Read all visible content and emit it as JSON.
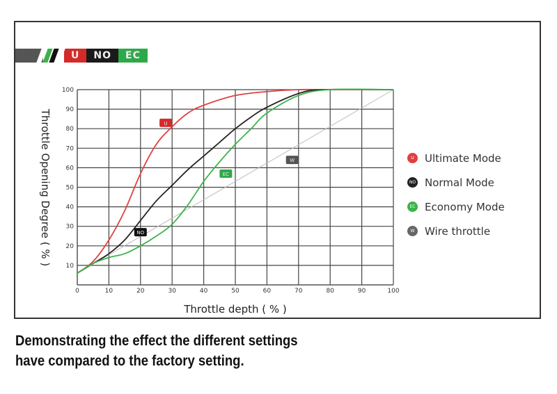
{
  "banner": {
    "labels": [
      "U",
      "NO",
      "EC"
    ],
    "colors": [
      "#d42a2a",
      "#1a1a1a",
      "#2fa84a"
    ]
  },
  "chart_data": {
    "type": "line",
    "xlabel": "Throttle depth ( % )",
    "ylabel": "Throttle Opening Degree ( % )",
    "xlim": [
      0,
      100
    ],
    "ylim": [
      0,
      100
    ],
    "xticks": [
      "0",
      "10",
      "20",
      "30",
      "40",
      "50",
      "60",
      "70",
      "80",
      "90",
      "100"
    ],
    "yticks": [
      "10",
      "20",
      "30",
      "40",
      "50",
      "60",
      "70",
      "80",
      "90",
      "100"
    ],
    "grid": true,
    "legend_position": "right",
    "series": [
      {
        "name": "Ultimate Mode",
        "badge": "U",
        "color": "#e04040",
        "x": [
          0,
          5,
          10,
          15,
          20,
          25,
          30,
          35,
          40,
          50,
          60,
          70,
          80,
          100
        ],
        "y": [
          6,
          12,
          23,
          38,
          57,
          72,
          81,
          88,
          92,
          97,
          99,
          100,
          100,
          100
        ],
        "badge_at": [
          28,
          83
        ]
      },
      {
        "name": "Normal Mode",
        "badge": "NO",
        "color": "#222222",
        "x": [
          0,
          5,
          10,
          15,
          20,
          25,
          30,
          35,
          40,
          45,
          50,
          55,
          60,
          70,
          78,
          100
        ],
        "y": [
          6,
          11,
          16,
          23,
          33,
          43,
          51,
          59,
          66,
          73,
          80,
          86,
          91,
          98,
          100,
          100
        ],
        "badge_at": [
          20,
          27
        ]
      },
      {
        "name": "Economy Mode",
        "badge": "EC",
        "color": "#3cb34a",
        "x": [
          0,
          5,
          10,
          15,
          20,
          25,
          30,
          35,
          40,
          45,
          50,
          55,
          60,
          70,
          80,
          100
        ],
        "y": [
          6,
          11,
          14,
          16,
          20,
          25,
          31,
          41,
          53,
          63,
          72,
          80,
          88,
          97,
          100,
          100
        ],
        "badge_at": [
          47,
          57
        ]
      },
      {
        "name": "Wire throttle",
        "badge": "W",
        "color": "#bbbbbb",
        "x": [
          0,
          100
        ],
        "y": [
          6,
          100
        ],
        "badge_at": [
          68,
          64
        ]
      }
    ]
  },
  "caption": {
    "line1": "Demonstrating the effect the different settings",
    "line2": "have compared to the factory setting."
  }
}
